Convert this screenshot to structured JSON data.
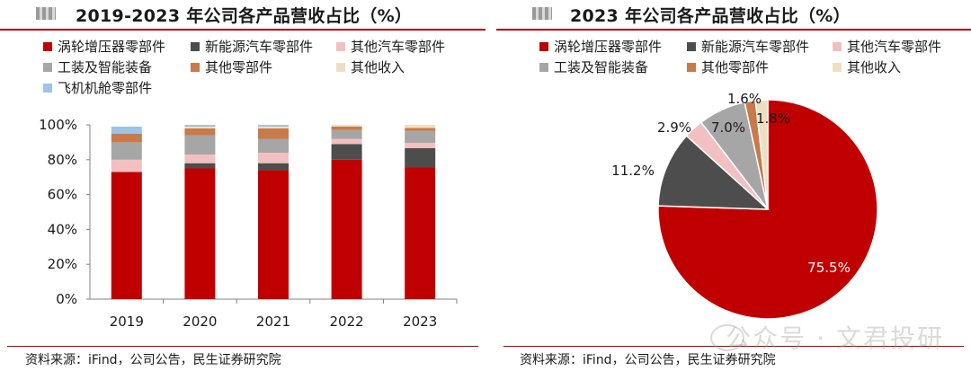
{
  "chart_data": [
    {
      "type": "bar",
      "stacked": true,
      "title": "2019-2023 年公司各产品营收占比（%）",
      "categories": [
        "2019",
        "2020",
        "2021",
        "2022",
        "2023"
      ],
      "ylim": [
        0,
        100
      ],
      "yticks": [
        "0%",
        "20%",
        "40%",
        "60%",
        "80%",
        "100%"
      ],
      "grid": false,
      "legend_position": "top",
      "series": [
        {
          "name": "涡轮增压器零部件",
          "color": "#c00000",
          "values": [
            73,
            75,
            74,
            80,
            75.5
          ]
        },
        {
          "name": "新能源汽车零部件",
          "color": "#4d4d4d",
          "values": [
            0,
            3,
            4,
            9,
            11.2
          ]
        },
        {
          "name": "其他汽车零部件",
          "color": "#f2c0c0",
          "values": [
            7,
            5,
            6,
            3,
            2.9
          ]
        },
        {
          "name": "工装及智能装备",
          "color": "#a6a6a6",
          "values": [
            10,
            11,
            8,
            5,
            7.0
          ]
        },
        {
          "name": "其他零部件",
          "color": "#c87a4a",
          "values": [
            5,
            4,
            6,
            2,
            1.6
          ]
        },
        {
          "name": "其他收入",
          "color": "#efdfc2",
          "values": [
            0,
            1,
            1,
            1,
            1.8
          ]
        },
        {
          "name": "飞机机舱零部件",
          "color": "#9dc3e6",
          "values": [
            4,
            1,
            1,
            0,
            0
          ]
        }
      ]
    },
    {
      "type": "pie",
      "title": "2023 年公司各产品营收占比（%）",
      "grid": false,
      "legend_position": "top",
      "slices": [
        {
          "name": "涡轮增压器零部件",
          "value": 75.5,
          "label": "75.5%",
          "color": "#c00000"
        },
        {
          "name": "新能源汽车零部件",
          "value": 11.2,
          "label": "11.2%",
          "color": "#4d4d4d"
        },
        {
          "name": "其他汽车零部件",
          "value": 2.9,
          "label": "2.9%",
          "color": "#f2c0c0"
        },
        {
          "name": "工装及智能装备",
          "value": 7.0,
          "label": "7.0%",
          "color": "#a6a6a6"
        },
        {
          "name": "其他零部件",
          "value": 1.6,
          "label": "1.6%",
          "color": "#c87a4a"
        },
        {
          "name": "其他收入",
          "value": 1.8,
          "label": "1.8%",
          "color": "#efdfc2"
        }
      ]
    }
  ],
  "source_left": "资料来源：iFind，公司公告，民生证券研究院",
  "source_right": "资料来源：iFind，公司公告，民生证券研究院",
  "watermark": "公众号 · 文君投研"
}
